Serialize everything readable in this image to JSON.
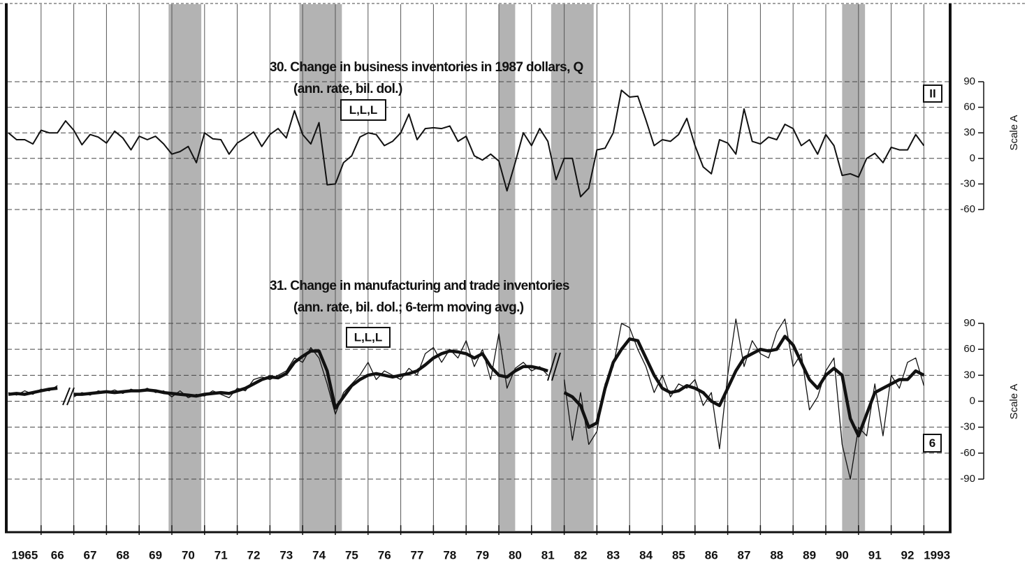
{
  "years": [
    {
      "value": 1965.5,
      "label": "1965"
    },
    {
      "value": 1966.5,
      "label": "66"
    },
    {
      "value": 1967.5,
      "label": "67"
    },
    {
      "value": 1968.5,
      "label": "68"
    },
    {
      "value": 1969.5,
      "label": "69"
    },
    {
      "value": 1970.5,
      "label": "70"
    },
    {
      "value": 1971.5,
      "label": "71"
    },
    {
      "value": 1972.5,
      "label": "72"
    },
    {
      "value": 1973.5,
      "label": "73"
    },
    {
      "value": 1974.5,
      "label": "74"
    },
    {
      "value": 1975.5,
      "label": "75"
    },
    {
      "value": 1976.5,
      "label": "76"
    },
    {
      "value": 1977.5,
      "label": "77"
    },
    {
      "value": 1978.5,
      "label": "78"
    },
    {
      "value": 1979.5,
      "label": "79"
    },
    {
      "value": 1980.5,
      "label": "80"
    },
    {
      "value": 1981.5,
      "label": "81"
    },
    {
      "value": 1982.5,
      "label": "82"
    },
    {
      "value": 1983.5,
      "label": "83"
    },
    {
      "value": 1984.5,
      "label": "84"
    },
    {
      "value": 1985.5,
      "label": "85"
    },
    {
      "value": 1986.5,
      "label": "86"
    },
    {
      "value": 1987.5,
      "label": "87"
    },
    {
      "value": 1988.5,
      "label": "88"
    },
    {
      "value": 1989.5,
      "label": "89"
    },
    {
      "value": 1990.5,
      "label": "90"
    },
    {
      "value": 1991.5,
      "label": "91"
    },
    {
      "value": 1992.5,
      "label": "92"
    },
    {
      "value": 1993.4,
      "label": "1993"
    }
  ],
  "year_lines": [
    1966,
    1967,
    1968,
    1969,
    1970,
    1971,
    1972,
    1973,
    1974,
    1975,
    1976,
    1977,
    1978,
    1979,
    1980,
    1981,
    1982,
    1983,
    1984,
    1985,
    1986,
    1987,
    1988,
    1989,
    1990,
    1991,
    1992,
    1993
  ],
  "xlim": [
    1965,
    1993.5
  ],
  "recessions": [
    [
      1969.9,
      1970.9
    ],
    [
      1973.9,
      1975.2
    ],
    [
      1980.0,
      1980.5
    ],
    [
      1981.6,
      1982.9
    ],
    [
      1990.5,
      1991.2
    ]
  ],
  "chart_data": [
    {
      "type": "line",
      "title": "30. Change in business inventories in 1987 dollars, Q",
      "subtitle": "(ann. rate, bil. dol.)",
      "timing_code": "L,L,L",
      "panel_label": "II",
      "y_label": "Scale A",
      "ylim": [
        -60,
        90
      ],
      "yticks": [
        -60,
        -30,
        0,
        30,
        60,
        90
      ],
      "grid": true,
      "x": [
        1965,
        1965.25,
        1965.5,
        1965.75,
        1966,
        1966.25,
        1966.5,
        1966.75,
        1967,
        1967.25,
        1967.5,
        1967.75,
        1968,
        1968.25,
        1968.5,
        1968.75,
        1969,
        1969.25,
        1969.5,
        1969.75,
        1970,
        1970.25,
        1970.5,
        1970.75,
        1971,
        1971.25,
        1971.5,
        1971.75,
        1972,
        1972.25,
        1972.5,
        1972.75,
        1973,
        1973.25,
        1973.5,
        1973.75,
        1974,
        1974.25,
        1974.5,
        1974.75,
        1975,
        1975.25,
        1975.5,
        1975.75,
        1976,
        1976.25,
        1976.5,
        1976.75,
        1977,
        1977.25,
        1977.5,
        1977.75,
        1978,
        1978.25,
        1978.5,
        1978.75,
        1979,
        1979.25,
        1979.5,
        1979.75,
        1980,
        1980.25,
        1980.5,
        1980.75,
        1981,
        1981.25,
        1981.5,
        1981.75,
        1982,
        1982.25,
        1982.5,
        1982.75,
        1983,
        1983.25,
        1983.5,
        1983.75,
        1984,
        1984.25,
        1984.5,
        1984.75,
        1985,
        1985.25,
        1985.5,
        1985.75,
        1986,
        1986.25,
        1986.5,
        1986.75,
        1987,
        1987.25,
        1987.5,
        1987.75,
        1988,
        1988.25,
        1988.5,
        1988.75,
        1989,
        1989.25,
        1989.5,
        1989.75,
        1990,
        1990.25,
        1990.5,
        1990.75,
        1991,
        1991.25,
        1991.5,
        1991.75,
        1992,
        1992.25,
        1992.5,
        1992.75,
        1993
      ],
      "series": [
        {
          "color": "#111111",
          "width": 2,
          "values": [
            30,
            22,
            22,
            17,
            33,
            30,
            30,
            44,
            33,
            16,
            28,
            25,
            18,
            32,
            24,
            10,
            26,
            22,
            26,
            17,
            5,
            8,
            14,
            -5,
            30,
            23,
            22,
            5,
            18,
            24,
            31,
            14,
            28,
            35,
            24,
            56,
            28,
            17,
            42,
            -31,
            -30,
            -5,
            3,
            25,
            30,
            28,
            15,
            20,
            30,
            52,
            22,
            35,
            36,
            35,
            38,
            20,
            26,
            3,
            -2,
            5,
            -3,
            -38,
            -5,
            30,
            15,
            35,
            20,
            -25,
            0,
            0,
            -45,
            -35,
            10,
            12,
            30,
            80,
            72,
            73,
            45,
            15,
            22,
            20,
            28,
            47,
            15,
            -10,
            -18,
            22,
            18,
            5,
            58,
            20,
            17,
            25,
            22,
            40,
            35,
            15,
            22,
            5,
            28,
            15,
            -20,
            -18,
            -22,
            0,
            6,
            -5,
            13,
            10,
            10,
            28,
            15
          ]
        }
      ]
    },
    {
      "type": "line",
      "title": "31. Change in manufacturing and trade inventories",
      "subtitle": "(ann. rate, bil. dol.; 6-term moving avg.)",
      "timing_code": "L,L,L",
      "panel_label": "6",
      "y_label": "Scale A",
      "ylim": [
        -90,
        90
      ],
      "yticks": [
        -90,
        -60,
        -30,
        0,
        30,
        60,
        90
      ],
      "grid": true,
      "x": [
        1965,
        1965.25,
        1965.5,
        1965.75,
        1966,
        1966.25,
        1966.5,
        1966.75,
        1967,
        1967.25,
        1967.5,
        1967.75,
        1968,
        1968.25,
        1968.5,
        1968.75,
        1969,
        1969.25,
        1969.5,
        1969.75,
        1970,
        1970.25,
        1970.5,
        1970.75,
        1971,
        1971.25,
        1971.5,
        1971.75,
        1972,
        1972.25,
        1972.5,
        1972.75,
        1973,
        1973.25,
        1973.5,
        1973.75,
        1974,
        1974.25,
        1974.5,
        1974.75,
        1975,
        1975.25,
        1975.5,
        1975.75,
        1976,
        1976.25,
        1976.5,
        1976.75,
        1977,
        1977.25,
        1977.5,
        1977.75,
        1978,
        1978.25,
        1978.5,
        1978.75,
        1979,
        1979.25,
        1979.5,
        1979.75,
        1980,
        1980.25,
        1980.5,
        1980.75,
        1981,
        1981.25,
        1981.5,
        1981.75,
        1982,
        1982.25,
        1982.5,
        1982.75,
        1983,
        1983.25,
        1983.5,
        1983.75,
        1984,
        1984.25,
        1984.5,
        1984.75,
        1985,
        1985.25,
        1985.5,
        1985.75,
        1986,
        1986.25,
        1986.5,
        1986.75,
        1987,
        1987.25,
        1987.5,
        1987.75,
        1988,
        1988.25,
        1988.5,
        1988.75,
        1989,
        1989.25,
        1989.5,
        1989.75,
        1990,
        1990.25,
        1990.5,
        1990.75,
        1991,
        1991.25,
        1991.5,
        1991.75,
        1992,
        1992.25,
        1992.5,
        1992.75,
        1993
      ],
      "series": [
        {
          "color": "#111111",
          "width": 1.3,
          "values": [
            10,
            7,
            12,
            8,
            14,
            12,
            18,
            null,
            5,
            10,
            7,
            12,
            10,
            13,
            9,
            14,
            11,
            15,
            10,
            12,
            5,
            12,
            4,
            8,
            6,
            12,
            8,
            4,
            15,
            12,
            25,
            28,
            25,
            30,
            35,
            50,
            45,
            62,
            50,
            20,
            -15,
            10,
            20,
            30,
            45,
            25,
            35,
            30,
            25,
            38,
            30,
            55,
            62,
            45,
            60,
            50,
            70,
            40,
            60,
            25,
            78,
            15,
            38,
            45,
            35,
            40,
            30,
            null,
            25,
            -45,
            10,
            -50,
            -35,
            20,
            40,
            90,
            85,
            60,
            40,
            10,
            30,
            5,
            20,
            15,
            25,
            -5,
            10,
            -55,
            30,
            95,
            40,
            70,
            55,
            50,
            80,
            95,
            40,
            55,
            -10,
            5,
            35,
            50,
            -50,
            -90,
            -30,
            -40,
            20,
            -40,
            30,
            15,
            45,
            50,
            18
          ]
        },
        {
          "color": "#111111",
          "width": 4.5,
          "values": [
            8,
            9,
            8,
            10,
            12,
            14,
            15,
            null,
            8,
            8,
            9,
            10,
            11,
            10,
            11,
            12,
            12,
            13,
            12,
            10,
            9,
            8,
            7,
            6,
            8,
            9,
            10,
            9,
            12,
            15,
            20,
            25,
            28,
            27,
            32,
            45,
            52,
            58,
            58,
            35,
            -8,
            5,
            18,
            25,
            30,
            32,
            30,
            28,
            30,
            32,
            35,
            42,
            50,
            55,
            58,
            57,
            55,
            50,
            55,
            40,
            30,
            28,
            35,
            40,
            40,
            38,
            35,
            null,
            10,
            5,
            -5,
            -30,
            -25,
            15,
            45,
            60,
            72,
            70,
            50,
            30,
            15,
            10,
            12,
            18,
            15,
            10,
            0,
            -5,
            15,
            35,
            50,
            55,
            60,
            58,
            60,
            75,
            65,
            45,
            25,
            15,
            30,
            38,
            30,
            -20,
            -40,
            -15,
            10,
            15,
            20,
            25,
            25,
            35,
            30
          ]
        }
      ]
    }
  ]
}
